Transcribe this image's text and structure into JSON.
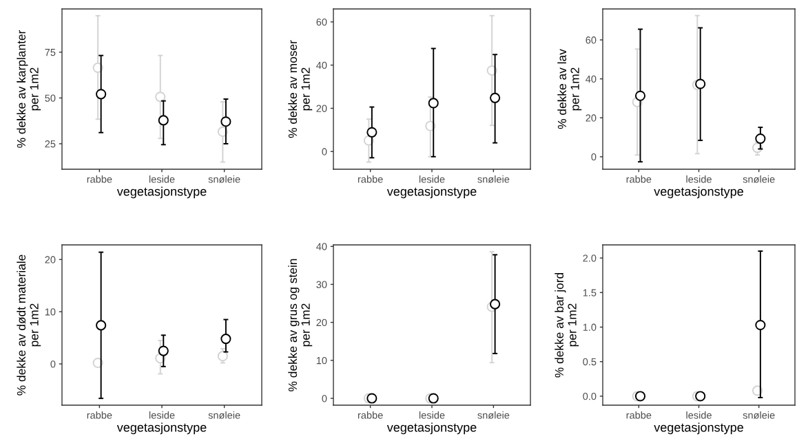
{
  "chart_data": [
    {
      "type": "scatter",
      "categories": [
        "rabbe",
        "leside",
        "snøleie"
      ],
      "xlabel": "vegetasjonstype",
      "ylabel": "% dekke av karplanter\nper 1m2",
      "ylim": [
        11.1,
        98.6
      ],
      "yticks": [
        25,
        50,
        75
      ],
      "marker": "circle",
      "series": [
        {
          "color": "#d3d3d3",
          "values": [
            66.5,
            50.6,
            31.6
          ],
          "errors": [
            [
              38.4,
              94.9
            ],
            [
              27.9,
              73.2
            ],
            [
              15.0,
              47.9
            ]
          ]
        },
        {
          "color": "#000000",
          "values": [
            52.1,
            37.8,
            37.1
          ],
          "errors": [
            [
              31.1,
              73.2
            ],
            [
              24.5,
              48.4
            ],
            [
              25.0,
              49.4
            ]
          ]
        }
      ]
    },
    {
      "type": "scatter",
      "categories": [
        "rabbe",
        "leside",
        "snøleie"
      ],
      "xlabel": "vegetasjonstype",
      "ylabel": "% dekke av moser\nper 1m2",
      "ylim": [
        -8.2,
        66.0
      ],
      "yticks": [
        0,
        20,
        40,
        60
      ],
      "marker": "circle",
      "series": [
        {
          "color": "#d3d3d3",
          "values": [
            5.1,
            11.8,
            37.5
          ],
          "errors": [
            [
              -4.9,
              15.0
            ],
            [
              -2.4,
              25.2
            ],
            [
              12.1,
              62.9
            ]
          ]
        },
        {
          "color": "#000000",
          "values": [
            8.9,
            22.4,
            24.8
          ],
          "errors": [
            [
              -2.9,
              20.6
            ],
            [
              -2.4,
              47.7
            ],
            [
              4.0,
              44.9
            ]
          ]
        }
      ]
    },
    {
      "type": "scatter",
      "categories": [
        "rabbe",
        "leside",
        "snøleie"
      ],
      "xlabel": "vegetasjonstype",
      "ylabel": "% dekke av lav\nper 1m2",
      "ylim": [
        -6.4,
        75.9
      ],
      "yticks": [
        0,
        20,
        40,
        60
      ],
      "marker": "circle",
      "series": [
        {
          "color": "#d3d3d3",
          "values": [
            28.1,
            36.9,
            4.6
          ],
          "errors": [
            [
              0.9,
              55.3
            ],
            [
              1.6,
              72.5
            ],
            [
              0.9,
              7.5
            ]
          ]
        },
        {
          "color": "#000000",
          "values": [
            31.3,
            37.4,
            9.3
          ],
          "errors": [
            [
              -2.6,
              65.5
            ],
            [
              8.4,
              66.2
            ],
            [
              4.0,
              15.1
            ]
          ]
        }
      ]
    },
    {
      "type": "scatter",
      "categories": [
        "rabbe",
        "leside",
        "snøleie"
      ],
      "xlabel": "vegetasjonstype",
      "ylabel": "% dekke av dødt materiale\nper 1m2",
      "ylim": [
        -7.9,
        22.8
      ],
      "yticks": [
        0,
        10,
        20
      ],
      "marker": "circle",
      "series": [
        {
          "color": "#d3d3d3",
          "values": [
            0.2,
            1.1,
            1.5
          ],
          "errors": [
            null,
            [
              -1.9,
              4.5
            ],
            [
              0.2,
              2.9
            ]
          ]
        },
        {
          "color": "#000000",
          "values": [
            7.4,
            2.5,
            4.8
          ],
          "errors": [
            [
              -6.6,
              21.4
            ],
            [
              -0.5,
              5.5
            ],
            [
              2.3,
              8.5
            ]
          ]
        }
      ]
    },
    {
      "type": "scatter",
      "categories": [
        "rabbe",
        "leside",
        "snøleie"
      ],
      "xlabel": "vegetasjonstype",
      "ylabel": "% dekke av grus og stein\nper 1m2",
      "ylim": [
        -1.8,
        40.4
      ],
      "yticks": [
        0,
        10,
        20,
        30,
        40
      ],
      "marker": "circle",
      "series": [
        {
          "color": "#d3d3d3",
          "values": [
            0,
            0,
            24.1
          ],
          "errors": [
            null,
            null,
            [
              9.4,
              38.6
            ]
          ]
        },
        {
          "color": "#000000",
          "values": [
            0,
            0,
            24.8
          ],
          "errors": [
            null,
            null,
            [
              11.8,
              37.8
            ]
          ]
        }
      ]
    },
    {
      "type": "scatter",
      "categories": [
        "rabbe",
        "leside",
        "snøleie"
      ],
      "xlabel": "vegetasjonstype",
      "ylabel": "% dekke av bar jord\nper 1m2",
      "ylim": [
        -0.13,
        2.19
      ],
      "yticks": [
        {
          "value": 0,
          "label": "0.0"
        },
        {
          "value": 0.5,
          "label": "0.5"
        },
        {
          "value": 1,
          "label": "1.0"
        },
        {
          "value": 1.5,
          "label": "1.5"
        },
        {
          "value": 2,
          "label": "2.0"
        }
      ],
      "marker": "circle",
      "series": [
        {
          "color": "#d3d3d3",
          "values": [
            0,
            0,
            0.08
          ],
          "errors": [
            null,
            null,
            null
          ]
        },
        {
          "color": "#000000",
          "values": [
            0,
            0,
            1.03
          ],
          "errors": [
            null,
            null,
            [
              -0.02,
              2.1
            ]
          ]
        }
      ]
    }
  ]
}
